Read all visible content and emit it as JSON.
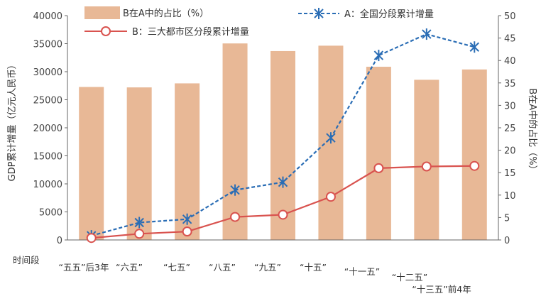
{
  "chart_data": {
    "type": "bar",
    "period_label": "时间段",
    "categories": [
      "“五五”后3年",
      "“六五”",
      "“七五”",
      "“八五”",
      "“九五”",
      "“十五”",
      "“十一五”",
      "“十二五”",
      "“十三五”前4年"
    ],
    "series": [
      {
        "name": "B在A中的占比（%）",
        "type": "bar",
        "axis": "right",
        "color": "#e8b896",
        "values": [
          34.1,
          34.0,
          34.9,
          43.8,
          42.1,
          43.3,
          38.6,
          35.7,
          38.0
        ]
      },
      {
        "name": "A：全国分段累计增量",
        "type": "line",
        "axis": "left",
        "color": "#2a6db5",
        "dash": true,
        "marker": "star",
        "values": [
          750,
          3100,
          3700,
          8900,
          10300,
          18200,
          32900,
          36700,
          34400
        ]
      },
      {
        "name": "B：三大都市区分段累计增量",
        "type": "line",
        "axis": "left",
        "color": "#d9534f",
        "marker": "circle",
        "values": [
          350,
          1100,
          1500,
          4100,
          4500,
          7700,
          12800,
          13100,
          13200
        ]
      }
    ],
    "y_left": {
      "label": "GDP累计增量（亿元人民币）",
      "min": 0,
      "max": 40000,
      "step": 5000,
      "ticks": [
        "0",
        "5000",
        "10000",
        "15000",
        "20000",
        "25000",
        "30000",
        "35000",
        "40000"
      ]
    },
    "y_right": {
      "label": "B在A中的占比（%）",
      "min": 0,
      "max": 50,
      "step": 5,
      "ticks": [
        "0",
        "5",
        "10",
        "15",
        "20",
        "25",
        "30",
        "35",
        "40",
        "45",
        "50"
      ]
    },
    "legend": {
      "bar": "B在A中的占比（%）",
      "line_a": "A：全国分段累计增量",
      "line_b": "B：三大都市区分段累计增量"
    },
    "grid": false
  }
}
